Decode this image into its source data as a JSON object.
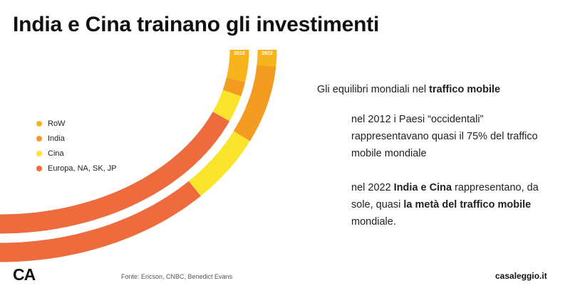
{
  "slide": {
    "title": "India e Cina trainano gli investimenti",
    "logo": "CA",
    "source": "Fonte: Ericson, CNBC, Benedict Evans",
    "site": "casaleggio.it"
  },
  "chart_data": {
    "type": "area",
    "description_style": "curved stacked bands",
    "categories": [
      "2012",
      "2022"
    ],
    "series": [
      {
        "name": "Europa, NA, SK, JP",
        "color": "#ed6b3d",
        "values": [
          75,
          52
        ]
      },
      {
        "name": "Cina",
        "color": "#fbe52c",
        "values": [
          9,
          20
        ]
      },
      {
        "name": "India",
        "color": "#f49c22",
        "values": [
          5,
          23
        ]
      },
      {
        "name": "RoW",
        "color": "#f8b41c",
        "values": [
          11,
          5
        ]
      }
    ],
    "legend_order": [
      "RoW",
      "India",
      "Cina",
      "Europa, NA, SK, JP"
    ],
    "legend_position": "left"
  },
  "panel": {
    "heading_normal": "Gli equilibri mondiali nel ",
    "heading_bold": "traffico mobile",
    "p1": "nel 2012 i Paesi “occidentali” rappresentavano quasi il 75% del traffico mobile mondiale",
    "p2_a": "nel 2022 ",
    "p2_b": "India e Cina",
    "p2_c": " rappresentano, da sole, quasi ",
    "p2_d": "la metà del traffico mobile",
    "p2_e": " mondiale."
  }
}
